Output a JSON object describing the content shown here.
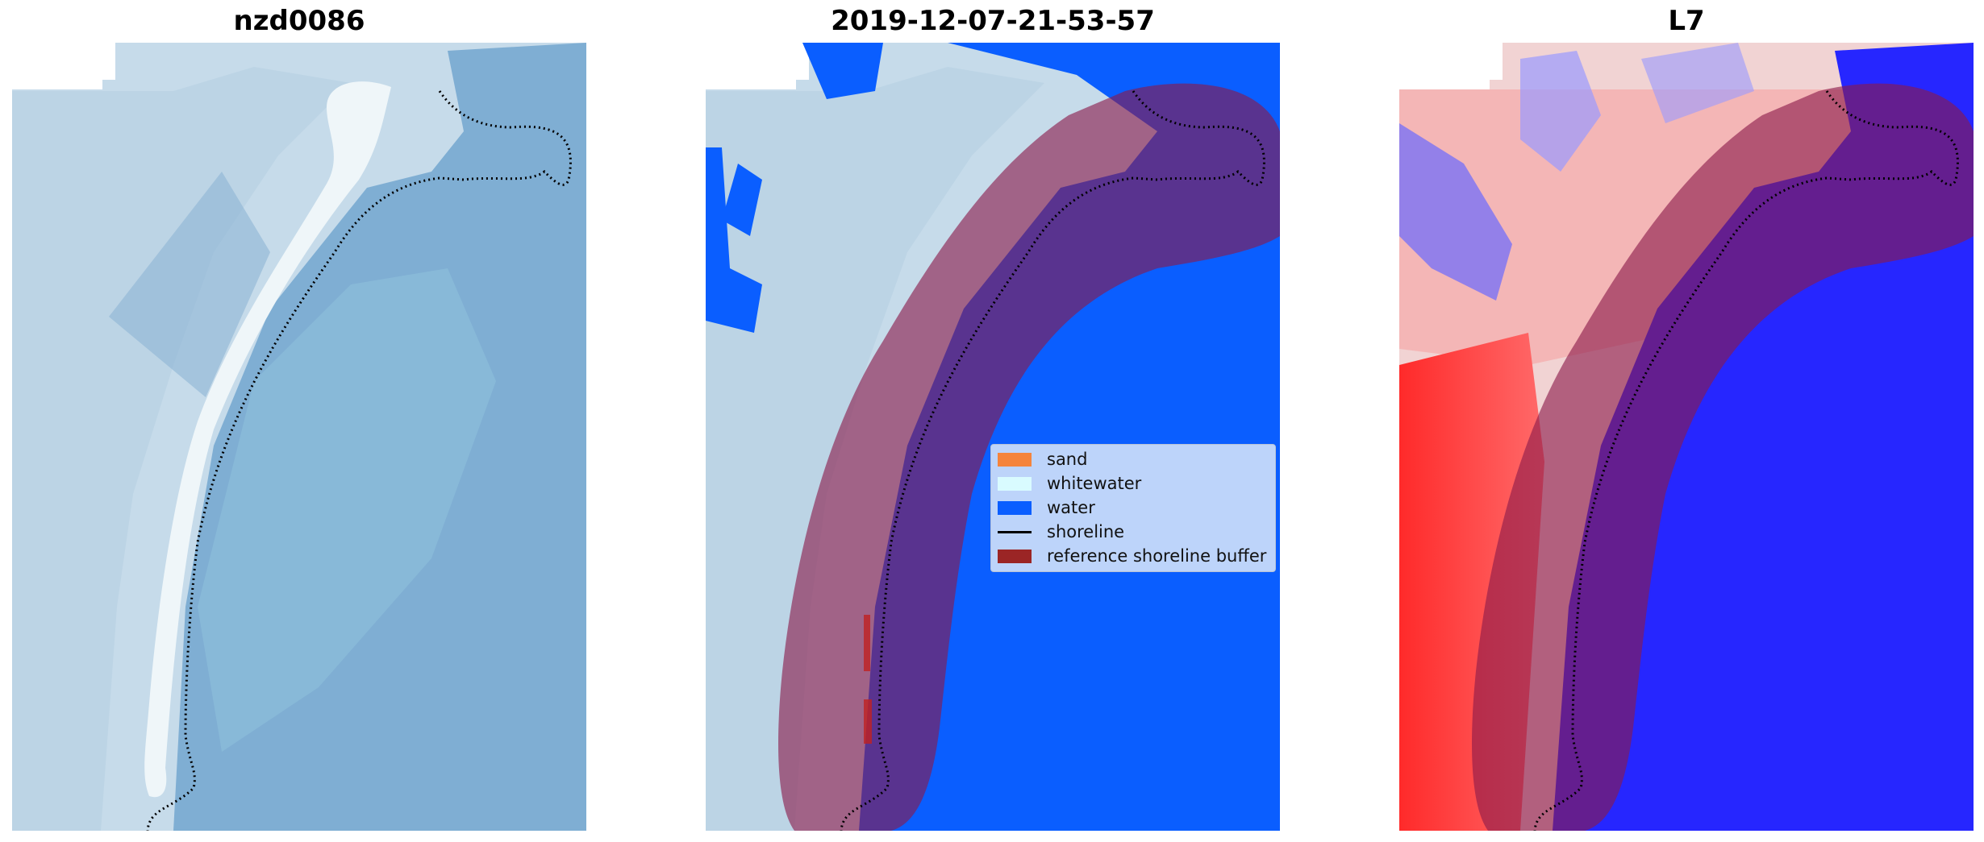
{
  "panels": [
    {
      "title": "nzd0086"
    },
    {
      "title": "2019-12-07-21-53-57"
    },
    {
      "title": "L7"
    }
  ],
  "legend": [
    {
      "label": "sand",
      "color": "#f5843c",
      "kind": "patch"
    },
    {
      "label": "whitewater",
      "color": "#d9fbff",
      "kind": "patch"
    },
    {
      "label": "water",
      "color": "#0a5eff",
      "kind": "patch"
    },
    {
      "label": "shoreline",
      "color": "#000000",
      "kind": "line"
    },
    {
      "label": "reference shoreline buffer",
      "color": "#9b2525",
      "kind": "patch"
    }
  ],
  "colors": {
    "rgb_water": "#7fafd4",
    "rgb_land": "#c5dbe9",
    "sand_beach": "#eef5f8",
    "classified_water": "#0a5eff",
    "buffer_overlay": "#8b1a4a",
    "index_positive": "#ff2a2a",
    "index_negative": "#2626ff"
  }
}
